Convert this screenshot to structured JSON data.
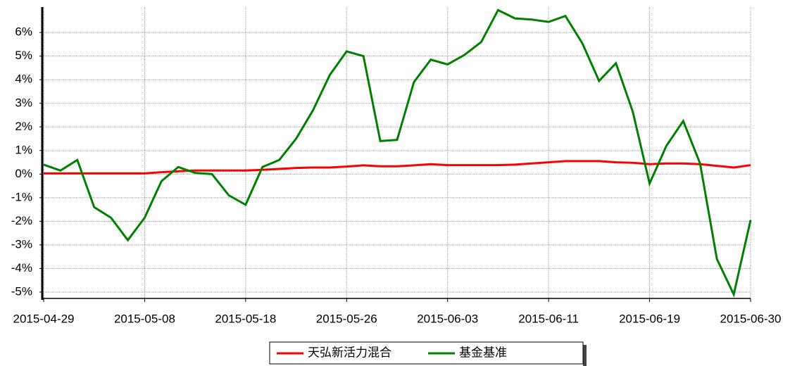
{
  "chart_data": {
    "type": "line",
    "categories": [
      "2015-04-29",
      null,
      null,
      null,
      null,
      null,
      "2015-05-08",
      null,
      null,
      null,
      null,
      null,
      "2015-05-18",
      null,
      null,
      null,
      null,
      null,
      "2015-05-26",
      null,
      null,
      null,
      null,
      null,
      "2015-06-03",
      null,
      null,
      null,
      null,
      null,
      "2015-06-11",
      null,
      null,
      null,
      null,
      null,
      "2015-06-19",
      null,
      null,
      null,
      null,
      null,
      "2015-06-30"
    ],
    "series": [
      {
        "name": "天弘新活力混合",
        "color": "#ff0000",
        "values": [
          0.03,
          0.03,
          0.03,
          0.03,
          0.03,
          0.03,
          0.03,
          0.08,
          0.12,
          0.15,
          0.15,
          0.15,
          0.15,
          0.18,
          0.22,
          0.26,
          0.28,
          0.28,
          0.32,
          0.37,
          0.33,
          0.33,
          0.37,
          0.42,
          0.38,
          0.38,
          0.38,
          0.38,
          0.4,
          0.45,
          0.5,
          0.55,
          0.55,
          0.55,
          0.5,
          0.48,
          0.42,
          0.45,
          0.45,
          0.42,
          0.35,
          0.28,
          0.38
        ]
      },
      {
        "name": "基金基准",
        "color": "#008000",
        "values": [
          0.4,
          0.15,
          0.6,
          -1.4,
          -1.85,
          -2.8,
          -1.85,
          -0.3,
          0.3,
          0.05,
          0.0,
          -0.9,
          -1.3,
          0.3,
          0.6,
          1.5,
          2.7,
          4.2,
          5.2,
          5.0,
          1.4,
          1.45,
          3.9,
          4.85,
          4.65,
          5.05,
          5.6,
          6.95,
          6.6,
          6.55,
          6.45,
          6.7,
          5.55,
          3.95,
          4.7,
          2.65,
          -0.4,
          1.2,
          2.25,
          0.45,
          -3.6,
          -5.1,
          -1.95
        ]
      }
    ],
    "ylim": [
      -5.27,
      7.08
    ],
    "yticks": [
      {
        "value": -5,
        "label": "-5%"
      },
      {
        "value": -4,
        "label": "-4%"
      },
      {
        "value": -3,
        "label": "-3%"
      },
      {
        "value": -2,
        "label": "-2%"
      },
      {
        "value": -1,
        "label": "-1%"
      },
      {
        "value": 0,
        "label": "0%"
      },
      {
        "value": 1,
        "label": "1%"
      },
      {
        "value": 2,
        "label": "2%"
      },
      {
        "value": 3,
        "label": "3%"
      },
      {
        "value": 4,
        "label": "4%"
      },
      {
        "value": 5,
        "label": "5%"
      },
      {
        "value": 6,
        "label": "6%"
      }
    ],
    "grid": true,
    "legend": "bottom"
  }
}
